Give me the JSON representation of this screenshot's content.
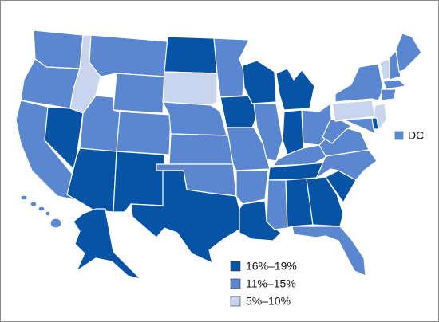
{
  "legend": {
    "items": [
      {
        "label": "16%–19%",
        "color": "#0753a6"
      },
      {
        "label": "11%–15%",
        "color": "#5b86d0"
      },
      {
        "label": "5%–10%",
        "color": "#c9d4ef"
      }
    ]
  },
  "dc_label": "DC"
}
